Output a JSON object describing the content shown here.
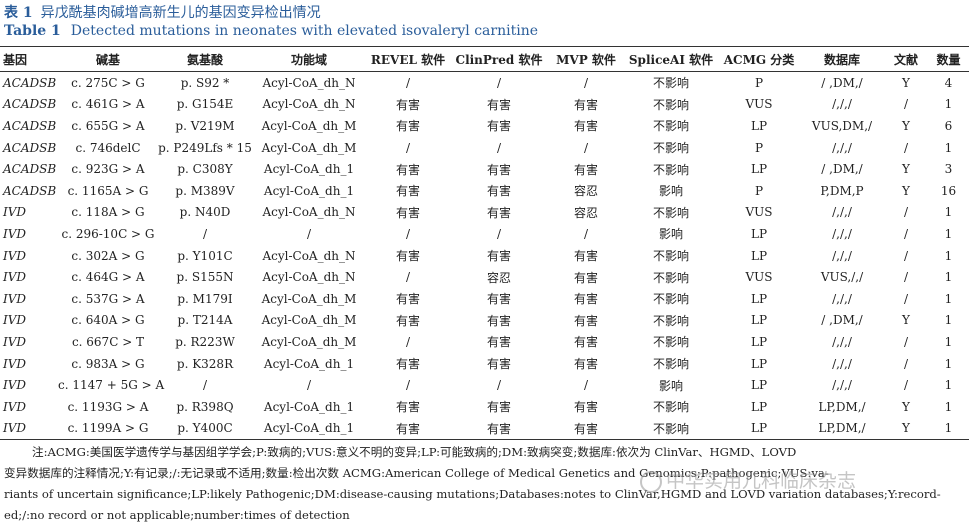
{
  "caption": {
    "cn_label": "表 1",
    "cn_title": "异戊酰基肉碱增高新生儿的基因变异检出情况",
    "en_label": "Table 1",
    "en_title": "Detected mutations in neonates with elevated isovaleryl carnitine"
  },
  "headers": [
    "基因",
    "碱基",
    "氨基酸",
    "功能域",
    "REVEL 软件",
    "ClinPred 软件",
    "MVP 软件",
    "SpliceAI 软件",
    "ACMG 分类",
    "数据库",
    "文献",
    "数量"
  ],
  "rows": [
    [
      "ACADSB",
      "c. 275C > G",
      "p. S92 *",
      "Acyl-CoA_dh_N",
      "/",
      "/",
      "/",
      "不影响",
      "P",
      "/ ,DM,/",
      "Y",
      "4"
    ],
    [
      "ACADSB",
      "c. 461G > A",
      "p. G154E",
      "Acyl-CoA_dh_N",
      "有害",
      "有害",
      "有害",
      "不影响",
      "VUS",
      "/,/,/",
      "/",
      "1"
    ],
    [
      "ACADSB",
      "c. 655G > A",
      "p. V219M",
      "Acyl-CoA_dh_M",
      "有害",
      "有害",
      "有害",
      "不影响",
      "LP",
      "VUS,DM,/",
      "Y",
      "6"
    ],
    [
      "ACADSB",
      "c. 746delC",
      "p. P249Lfs * 15",
      "Acyl-CoA_dh_M",
      "/",
      "/",
      "/",
      "不影响",
      "P",
      "/,/,/",
      "/",
      "1"
    ],
    [
      "ACADSB",
      "c. 923G > A",
      "p. C308Y",
      "Acyl-CoA_dh_1",
      "有害",
      "有害",
      "有害",
      "不影响",
      "LP",
      "/ ,DM,/",
      "Y",
      "3"
    ],
    [
      "ACADSB",
      "c. 1165A > G",
      "p. M389V",
      "Acyl-CoA_dh_1",
      "有害",
      "有害",
      "容忍",
      "影响",
      "P",
      "P,DM,P",
      "Y",
      "16"
    ],
    [
      "IVD",
      "c. 118A > G",
      "p. N40D",
      "Acyl-CoA_dh_N",
      "有害",
      "有害",
      "容忍",
      "不影响",
      "VUS",
      "/,/,/",
      "/",
      "1"
    ],
    [
      "IVD",
      "c. 296-10C > G",
      "/",
      "/",
      "/",
      "/",
      "/",
      "影响",
      "LP",
      "/,/,/",
      "/",
      "1"
    ],
    [
      "IVD",
      "c. 302A > G",
      "p. Y101C",
      "Acyl-CoA_dh_N",
      "有害",
      "有害",
      "有害",
      "不影响",
      "LP",
      "/,/,/",
      "/",
      "1"
    ],
    [
      "IVD",
      "c. 464G > A",
      "p. S155N",
      "Acyl-CoA_dh_N",
      "/",
      "容忍",
      "有害",
      "不影响",
      "VUS",
      "VUS,/,/",
      "/",
      "1"
    ],
    [
      "IVD",
      "c. 537G > A",
      "p. M179I",
      "Acyl-CoA_dh_M",
      "有害",
      "有害",
      "有害",
      "不影响",
      "LP",
      "/,/,/",
      "/",
      "1"
    ],
    [
      "IVD",
      "c. 640A > G",
      "p. T214A",
      "Acyl-CoA_dh_M",
      "有害",
      "有害",
      "有害",
      "不影响",
      "LP",
      "/ ,DM,/",
      "Y",
      "1"
    ],
    [
      "IVD",
      "c. 667C > T",
      "p. R223W",
      "Acyl-CoA_dh_M",
      "/",
      "有害",
      "有害",
      "不影响",
      "LP",
      "/,/,/",
      "/",
      "1"
    ],
    [
      "IVD",
      "c. 983A > G",
      "p. K328R",
      "Acyl-CoA_dh_1",
      "有害",
      "有害",
      "有害",
      "不影响",
      "LP",
      "/,/,/",
      "/",
      "1"
    ],
    [
      "IVD",
      "c. 1147 + 5G > A",
      "/",
      "/",
      "/",
      "/",
      "/",
      "影响",
      "LP",
      "/,/,/",
      "/",
      "1"
    ],
    [
      "IVD",
      "c. 1193G > A",
      "p. R398Q",
      "Acyl-CoA_dh_1",
      "有害",
      "有害",
      "有害",
      "不影响",
      "LP",
      "LP,DM,/",
      "Y",
      "1"
    ],
    [
      "IVD",
      "c. 1199A > G",
      "p. Y400C",
      "Acyl-CoA_dh_1",
      "有害",
      "有害",
      "有害",
      "不影响",
      "LP",
      "LP,DM,/",
      "Y",
      "1"
    ]
  ],
  "note_lines": [
    "注:ACMG:美国医学遗传学与基因组学学会;P:致病的;VUS:意义不明的变异;LP:可能致病的;DM:致病突变;数据库:依次为 ClinVar、HGMD、LOVD",
    "变异数据库的注释情况;Y:有记录;/:无记录或不适用;数量:检出次数 ACMG:American College of Medical Genetics and Genomics;P:pathogenic;VUS:va-",
    "riants of uncertain significance;LP:likely Pathogenic;DM:disease-causing mutations;Databases:notes to ClinVar,HGMD and LOVD variation databases;Y:record-",
    "ed;/:no record or not applicable;number:times of detection"
  ],
  "watermark": "中华实用儿科临床杂志"
}
